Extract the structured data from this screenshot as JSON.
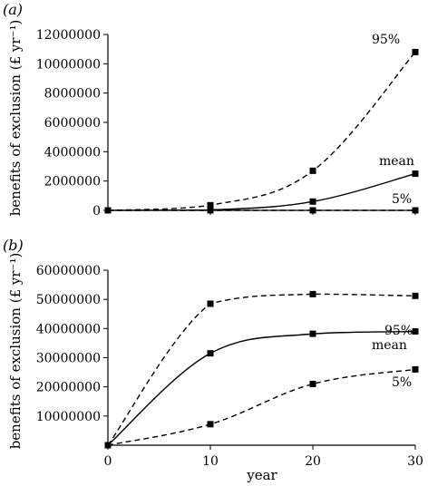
{
  "chart_data": [
    {
      "type": "line",
      "panel_label": "(a)",
      "x": [
        0,
        10,
        20,
        30
      ],
      "ylabel": "benefits of exclusion (£ yr⁻¹)",
      "ylim": [
        0,
        12000000
      ],
      "yticks": [
        "0",
        "2000000",
        "4000000",
        "6000000",
        "8000000",
        "10000000",
        "12000000"
      ],
      "ytick_values": [
        0,
        2000000,
        4000000,
        6000000,
        8000000,
        10000000,
        12000000
      ],
      "series": [
        {
          "name": "95%",
          "values": [
            0,
            350000,
            2700000,
            10800000
          ],
          "style": "dashed"
        },
        {
          "name": "mean",
          "values": [
            0,
            30000,
            600000,
            2500000
          ],
          "style": "solid"
        },
        {
          "name": "5%",
          "values": [
            0,
            0,
            0,
            0
          ],
          "style": "dashed"
        }
      ]
    },
    {
      "type": "line",
      "panel_label": "(b)",
      "x": [
        0,
        10,
        20,
        30
      ],
      "xlabel": "year",
      "xticks": [
        "0",
        "10",
        "20",
        "30"
      ],
      "xtick_values": [
        0,
        10,
        20,
        30
      ],
      "ylabel": "benefits of exclusion (£ yr⁻¹)",
      "ylim": [
        0,
        60000000
      ],
      "yticks": [
        "10000000",
        "20000000",
        "30000000",
        "40000000",
        "50000000",
        "60000000"
      ],
      "ytick_values": [
        10000000,
        20000000,
        30000000,
        40000000,
        50000000,
        60000000
      ],
      "series": [
        {
          "name": "95%",
          "values": [
            0,
            48500000,
            51800000,
            51200000
          ],
          "style": "dashed"
        },
        {
          "name": "mean",
          "values": [
            0,
            31500000,
            38200000,
            39000000
          ],
          "style": "solid"
        },
        {
          "name": "5%",
          "values": [
            0,
            7200000,
            21000000,
            26000000
          ],
          "style": "dashed"
        }
      ]
    }
  ]
}
